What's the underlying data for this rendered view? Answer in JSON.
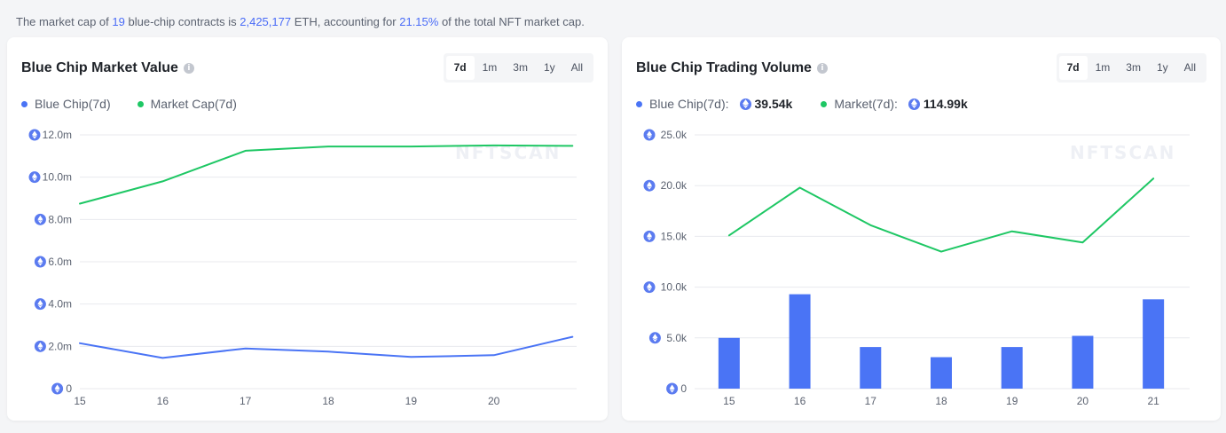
{
  "summary": {
    "prefix": "The market cap of",
    "count": "19",
    "mid": "blue-chip contracts is",
    "eth_value": "2,425,177",
    "eth_unit": "ETH, accounting for",
    "percent": "21.15%",
    "suffix": "of the total NFT market cap."
  },
  "watermark": "NFTSCAN",
  "colors": {
    "blue": "#4a74f5",
    "green": "#1ec764",
    "eth": "#5b7bf0"
  },
  "left_card": {
    "title": "Blue Chip Market Value",
    "info_icon": "info-icon",
    "tabs": [
      "7d",
      "1m",
      "3m",
      "1y",
      "All"
    ],
    "active_tab": "7d",
    "legend": [
      {
        "label": "Blue Chip(7d)"
      },
      {
        "label": "Market Cap(7d)"
      }
    ]
  },
  "right_card": {
    "title": "Blue Chip Trading Volume",
    "info_icon": "info-icon",
    "tabs": [
      "7d",
      "1m",
      "3m",
      "1y",
      "All"
    ],
    "active_tab": "7d",
    "legend": [
      {
        "label": "Blue Chip(7d):",
        "value": "39.54k"
      },
      {
        "label": "Market(7d):",
        "value": "114.99k"
      }
    ]
  },
  "chart_data": [
    {
      "type": "line",
      "title": "Blue Chip Market Value",
      "x": [
        15,
        16,
        17,
        18,
        19,
        20,
        20.95
      ],
      "xtick_labels": [
        "15",
        "16",
        "17",
        "18",
        "19",
        "20"
      ],
      "ytick_labels": [
        "0",
        "2.0m",
        "4.0m",
        "6.0m",
        "8.0m",
        "10.0m",
        "12.0m"
      ],
      "ylim": [
        0,
        12
      ],
      "yunit": "m ETH",
      "series": [
        {
          "name": "Blue Chip(7d)",
          "color": "#4a74f5",
          "values": [
            2.15,
            1.45,
            1.9,
            1.75,
            1.5,
            1.58,
            2.45
          ]
        },
        {
          "name": "Market Cap(7d)",
          "color": "#1ec764",
          "values": [
            8.75,
            9.8,
            11.25,
            11.45,
            11.45,
            11.5,
            11.48
          ]
        }
      ]
    },
    {
      "type": "bar+line",
      "title": "Blue Chip Trading Volume",
      "categories": [
        "15",
        "16",
        "17",
        "18",
        "19",
        "20",
        "21"
      ],
      "ytick_labels": [
        "0",
        "5.0k",
        "10.0k",
        "15.0k",
        "20.0k",
        "25.0k"
      ],
      "ylim": [
        0,
        25
      ],
      "yunit": "k ETH",
      "series": [
        {
          "name": "Blue Chip(7d)",
          "kind": "bar",
          "color": "#4a74f5",
          "values": [
            5.0,
            9.3,
            4.1,
            3.1,
            4.1,
            5.2,
            8.8
          ]
        },
        {
          "name": "Market(7d)",
          "kind": "line",
          "color": "#1ec764",
          "values": [
            15.1,
            19.8,
            16.1,
            13.5,
            15.5,
            14.4,
            20.7
          ]
        }
      ]
    }
  ]
}
